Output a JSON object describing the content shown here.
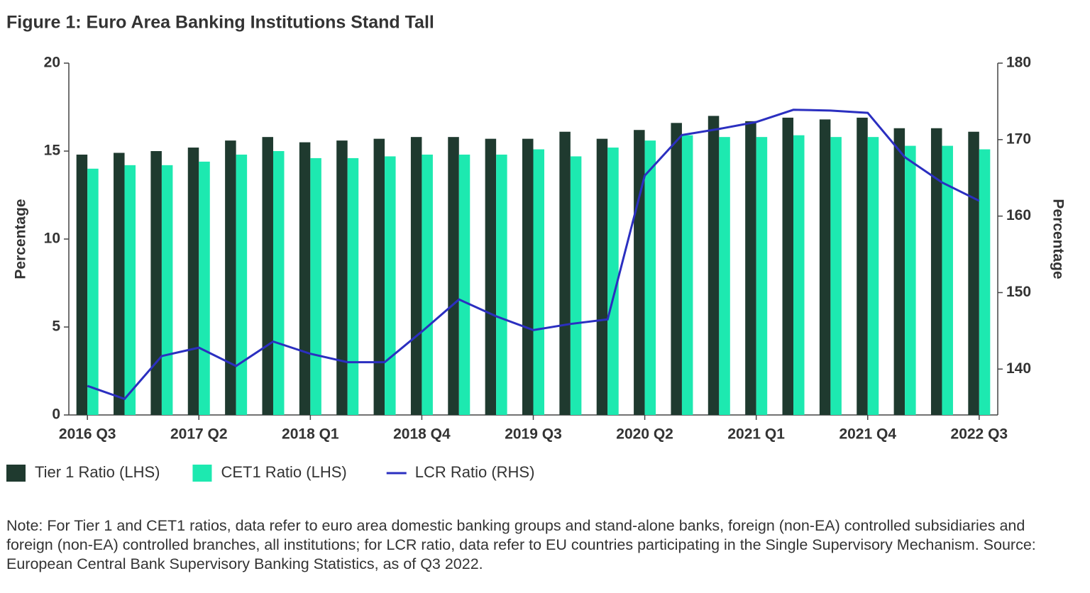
{
  "chart_data": {
    "type": "bar_line",
    "title": "Figure 1: Euro Area Banking Institutions Stand Tall",
    "categories": [
      "2016 Q3",
      null,
      null,
      "2017 Q2",
      null,
      null,
      "2018 Q1",
      null,
      null,
      "2018 Q4",
      null,
      null,
      "2019 Q3",
      null,
      null,
      "2020 Q2",
      null,
      null,
      "2021 Q1",
      null,
      null,
      "2021 Q4",
      null,
      null,
      "2022 Q3"
    ],
    "series": [
      {
        "name": "Tier 1 Ratio (LHS)",
        "type": "bar",
        "color": "#1f3a2f",
        "values": [
          14.8,
          14.9,
          15.0,
          15.2,
          15.6,
          15.8,
          15.5,
          15.6,
          15.7,
          15.8,
          15.8,
          15.7,
          15.7,
          16.1,
          15.7,
          16.2,
          16.6,
          17.0,
          16.7,
          16.9,
          16.8,
          16.9,
          16.3,
          16.3,
          16.1
        ]
      },
      {
        "name": "CET1 Ratio (LHS)",
        "type": "bar",
        "color": "#1de9b0",
        "values": [
          14.0,
          14.2,
          14.2,
          14.4,
          14.8,
          15.0,
          14.6,
          14.6,
          14.7,
          14.8,
          14.8,
          14.8,
          15.1,
          14.7,
          15.2,
          15.6,
          15.9,
          15.8,
          15.8,
          15.9,
          15.8,
          15.8,
          15.3,
          15.3,
          15.1
        ]
      },
      {
        "name": "LCR Ratio (RHS)",
        "type": "line",
        "axis": "y2",
        "color": "#2b2fc0",
        "values": [
          137.8,
          136.1,
          141.7,
          142.8,
          140.4,
          143.6,
          142.0,
          140.9,
          140.9,
          144.9,
          149.1,
          146.9,
          145.1,
          145.9,
          146.5,
          165.3,
          170.6,
          171.4,
          172.3,
          173.9,
          173.8,
          173.5,
          167.7,
          164.4,
          162.0
        ]
      }
    ],
    "y_label": "Percentage",
    "y2_label": "Percentage",
    "ylim": [
      0,
      20
    ],
    "yticks": [
      0,
      5,
      10,
      15,
      20
    ],
    "y2lim": [
      134,
      180
    ],
    "y2ticks": [
      140,
      150,
      160,
      170,
      180
    ],
    "note": "Note: For Tier 1 and CET1 ratios, data refer to euro area domestic banking groups and stand-alone banks, foreign (non-EA) controlled subsidiaries and foreign (non-EA) controlled branches, all institutions; for LCR ratio, data refer to EU countries participating in the Single Supervisory Mechanism. Source: European Central Bank Supervisory Banking Statistics, as of Q3 2022."
  }
}
